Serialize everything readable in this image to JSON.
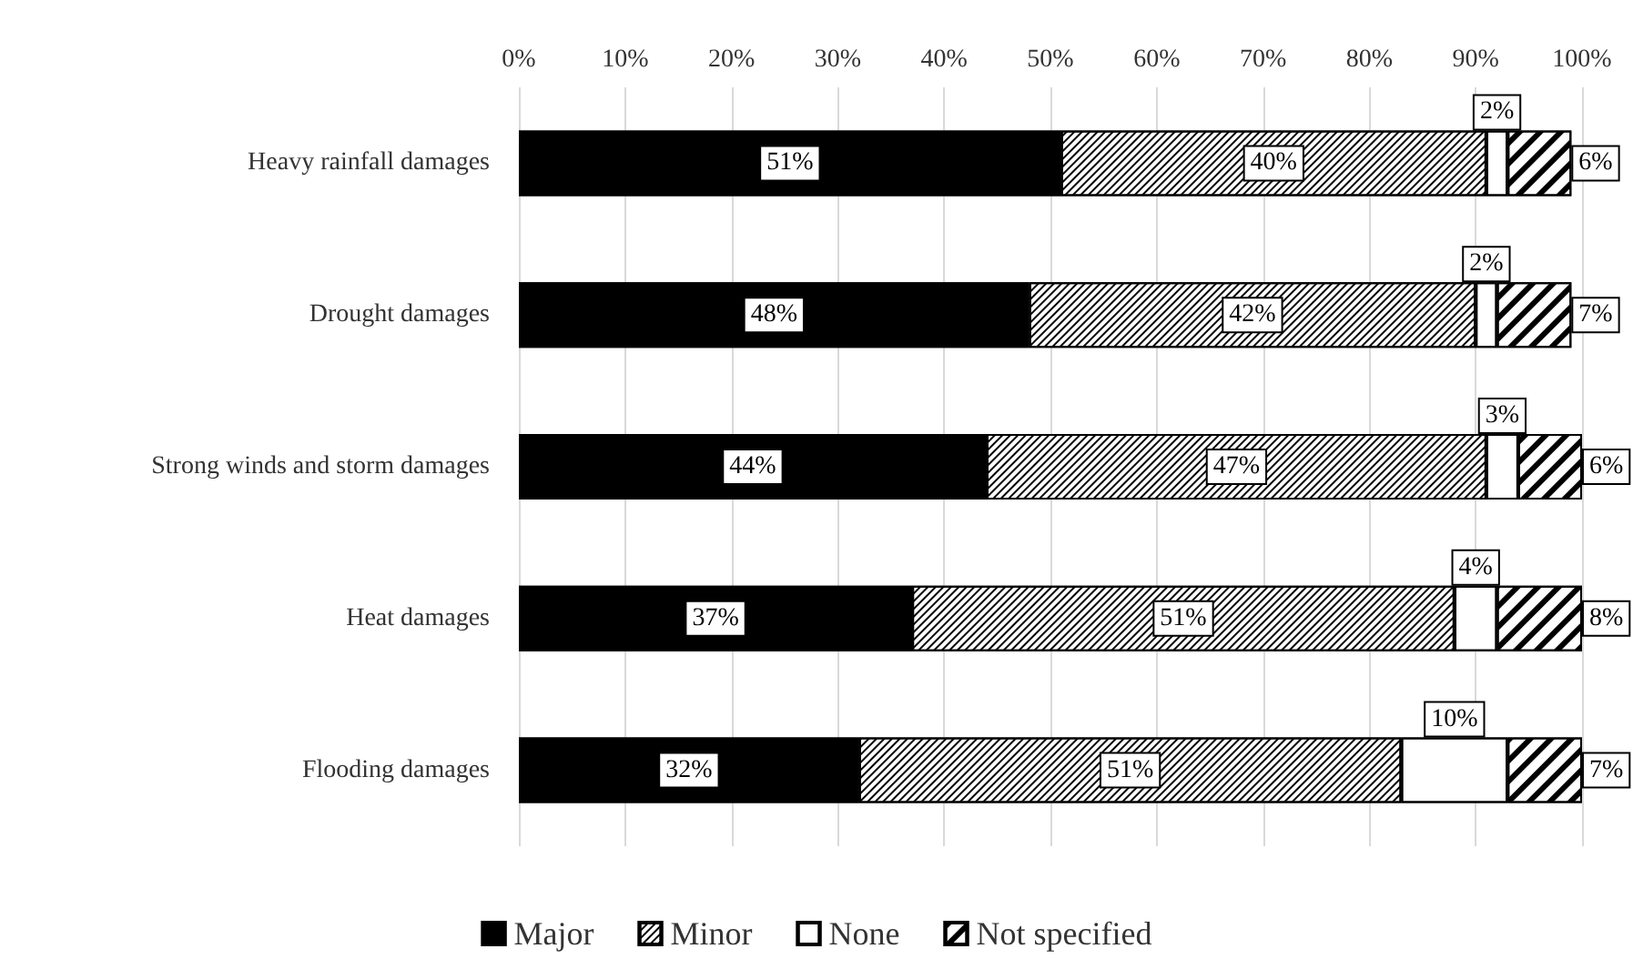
{
  "chart_data": {
    "type": "bar",
    "orientation": "horizontal",
    "stacked": true,
    "categories": [
      "Heavy rainfall damages",
      "Drought damages",
      "Strong winds and storm damages",
      "Heat damages",
      "Flooding damages"
    ],
    "series": [
      {
        "name": "Major",
        "color": "#000000",
        "values": [
          51,
          48,
          44,
          37,
          32
        ],
        "value_labels": [
          "51%",
          "48%",
          "44%",
          "37%",
          "32%"
        ]
      },
      {
        "name": "Minor",
        "color": "#000000",
        "values": [
          40,
          42,
          47,
          51,
          51
        ],
        "value_labels": [
          "40%",
          "42%",
          "47%",
          "51%",
          "51%"
        ]
      },
      {
        "name": "None",
        "color": "#ffffff",
        "values": [
          2,
          2,
          3,
          4,
          10
        ],
        "value_labels": [
          "2%",
          "2%",
          "3%",
          "4%",
          "10%"
        ]
      },
      {
        "name": "Not specified",
        "color": "#000000",
        "values": [
          6,
          7,
          6,
          8,
          7
        ],
        "value_labels": [
          "6%",
          "7%",
          "6%",
          "8%",
          "7%"
        ]
      }
    ],
    "xlim": [
      0,
      100
    ],
    "xticks": [
      {
        "value": 0,
        "label": "0%"
      },
      {
        "value": 10,
        "label": "10%"
      },
      {
        "value": 20,
        "label": "20%"
      },
      {
        "value": 30,
        "label": "30%"
      },
      {
        "value": 40,
        "label": "40%"
      },
      {
        "value": 50,
        "label": "50%"
      },
      {
        "value": 60,
        "label": "60%"
      },
      {
        "value": 70,
        "label": "70%"
      },
      {
        "value": 80,
        "label": "80%"
      },
      {
        "value": 90,
        "label": "90%"
      },
      {
        "value": 100,
        "label": "100%"
      }
    ],
    "grid": "x",
    "legend": "bottom"
  }
}
